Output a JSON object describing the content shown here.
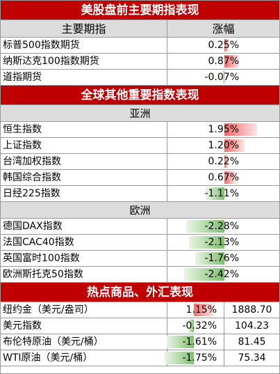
{
  "us_section": {
    "title": "美股盘前主要期指表现",
    "col_name": "主要期指",
    "col_change": "涨幅",
    "rows": [
      {
        "name": "标普500指数期货",
        "change": "0.25%",
        "value": 0.25
      },
      {
        "name": "纳斯达克100指数期货",
        "change": "0.87%",
        "value": 0.87
      },
      {
        "name": "道指期货",
        "change": "-0.07%",
        "value": -0.07
      }
    ]
  },
  "global_section": {
    "title": "全球其他重要指数表现",
    "asia": {
      "title": "亚洲",
      "rows": [
        {
          "name": "恒生指数",
          "change": "1.95%",
          "value": 1.95
        },
        {
          "name": "上证指数",
          "change": "1.20%",
          "value": 1.2
        },
        {
          "name": "台湾加权指数",
          "change": "0.22%",
          "value": 0.22
        },
        {
          "name": "韩国综合指数",
          "change": "0.67%",
          "value": 0.67
        },
        {
          "name": "日经225指数",
          "change": "-1.11%",
          "value": -1.11
        }
      ]
    },
    "europe": {
      "title": "欧洲",
      "rows": [
        {
          "name": "德国DAX指数",
          "change": "-2.28%",
          "value": -2.28
        },
        {
          "name": "法国CAC40指数",
          "change": "-2.13%",
          "value": -2.13
        },
        {
          "name": "英国富时100指数",
          "change": "-1.76%",
          "value": -1.76
        },
        {
          "name": "欧洲斯托克50指数",
          "change": "-2.42%",
          "value": -2.42
        }
      ]
    }
  },
  "fx_section": {
    "title": "热点商品、外汇表现",
    "rows": [
      {
        "name": "纽约金（美元/盎司）",
        "change": "1.15%",
        "value": 1.15,
        "price": "1888.70"
      },
      {
        "name": "美元指数",
        "change": "-0.32%",
        "value": -0.32,
        "price": "104.23"
      },
      {
        "name": "布伦特原油（美元/桶）",
        "change": "-1.61%",
        "value": -1.61,
        "price": "81.45"
      },
      {
        "name": "WTI原油（美元/桶）",
        "change": "-1.75%",
        "value": -1.75,
        "price": "75.34"
      }
    ]
  },
  "colors": {
    "header_red": "#c00000",
    "positive_bar": "#f26a6a",
    "negative_bar": "#7fbf6f"
  }
}
